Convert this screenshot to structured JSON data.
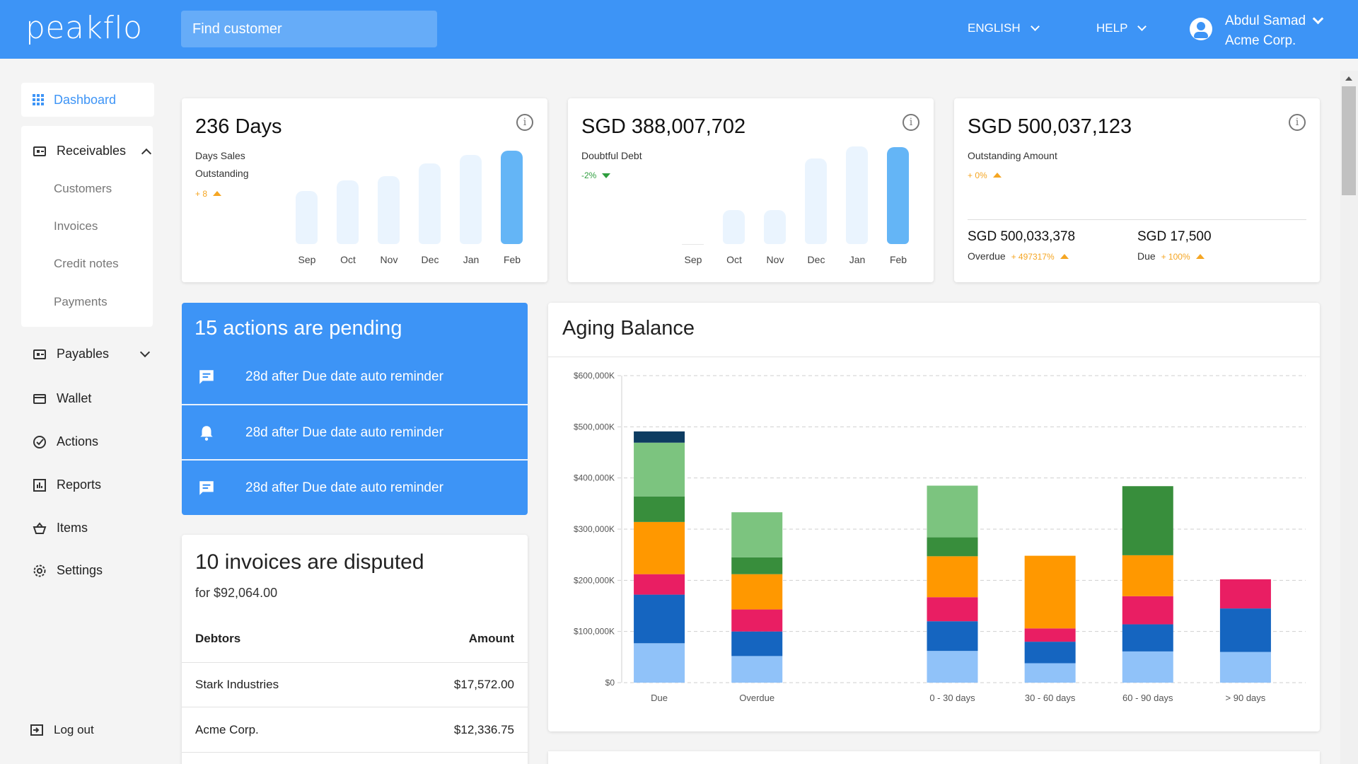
{
  "header": {
    "logo": "peakflo",
    "search_placeholder": "Find customer",
    "language": "ENGLISH",
    "help": "HELP",
    "user_name": "Abdul Samad",
    "user_org": "Acme Corp."
  },
  "sidebar": {
    "dashboard": "Dashboard",
    "receivables": "Receivables",
    "receivables_items": [
      "Customers",
      "Invoices",
      "Credit notes",
      "Payments"
    ],
    "payables": "Payables",
    "wallet": "Wallet",
    "actions": "Actions",
    "reports": "Reports",
    "items": "Items",
    "settings": "Settings",
    "logout": "Log out"
  },
  "kpi": [
    {
      "title": "236 Days",
      "subtitle": "Days Sales Outstanding",
      "change": "+ 8",
      "direction": "up",
      "bars": {
        "labels": [
          "Sep",
          "Oct",
          "Nov",
          "Dec",
          "Jan",
          "Feb"
        ],
        "values": [
          0.55,
          0.66,
          0.7,
          0.83,
          0.92,
          0.96
        ],
        "highlight_index": 5
      }
    },
    {
      "title": "SGD 388,007,702",
      "subtitle": "Doubtful Debt",
      "change": "-2%",
      "direction": "down",
      "bars": {
        "labels": [
          "Sep",
          "Oct",
          "Nov",
          "Dec",
          "Jan",
          "Feb"
        ],
        "values": [
          0.0,
          0.34,
          0.34,
          0.86,
          0.98,
          0.97
        ],
        "highlight_index": 5
      }
    },
    {
      "title": "SGD 500,037,123",
      "subtitle": "Outstanding Amount",
      "change": "+ 0%",
      "direction": "up",
      "overdue_value": "SGD 500,033,378",
      "overdue_label": "Overdue",
      "overdue_change": "+ 497317%",
      "due_value": "SGD 17,500",
      "due_label": "Due",
      "due_change": "+ 100%"
    }
  ],
  "pending": {
    "title": "15 actions are pending",
    "items": [
      {
        "label": "28d after Due date auto reminder",
        "icon": "chat-icon"
      },
      {
        "label": "28d after Due date auto reminder",
        "icon": "bell-icon"
      },
      {
        "label": "28d after Due date auto reminder",
        "icon": "chat-icon"
      }
    ]
  },
  "disputed": {
    "title": "10 invoices are disputed",
    "subtitle": "for $92,064.00",
    "col_debtors": "Debtors",
    "col_amount": "Amount",
    "rows": [
      {
        "debtor": "Stark Industries",
        "amount": "$17,572.00"
      },
      {
        "debtor": "Acme Corp.",
        "amount": "$12,336.75"
      }
    ]
  },
  "chart_data": {
    "type": "bar",
    "title": "Aging Balance",
    "stacked": true,
    "ylim": [
      0,
      600000
    ],
    "yticks": [
      "$0",
      "$100,000K",
      "$200,000K",
      "$300,000K",
      "$400,000K",
      "$500,000K",
      "$600,000K"
    ],
    "categories": [
      "Due",
      "Overdue",
      "",
      "0 - 30 days",
      "30 - 60 days",
      "60 - 90 days",
      "> 90 days"
    ],
    "grid": true,
    "colors": [
      "#90c2f9",
      "#1565c0",
      "#e91e63",
      "#ff9800",
      "#388e3c",
      "#7cc47f",
      "#0d3c61"
    ],
    "series": [
      {
        "values": [
          77000,
          52000,
          0,
          62000,
          38000,
          61000,
          60000
        ]
      },
      {
        "values": [
          95000,
          48000,
          0,
          58000,
          42000,
          53000,
          85000
        ]
      },
      {
        "values": [
          40000,
          43000,
          0,
          47000,
          26000,
          55000,
          57000
        ]
      },
      {
        "values": [
          102000,
          69000,
          0,
          80000,
          142000,
          80000,
          0
        ]
      },
      {
        "values": [
          50000,
          33000,
          0,
          37000,
          0,
          135000,
          0
        ]
      },
      {
        "values": [
          105000,
          88000,
          0,
          101000,
          0,
          0,
          0
        ]
      },
      {
        "values": [
          22000,
          0,
          0,
          0,
          0,
          0,
          0
        ]
      }
    ]
  }
}
